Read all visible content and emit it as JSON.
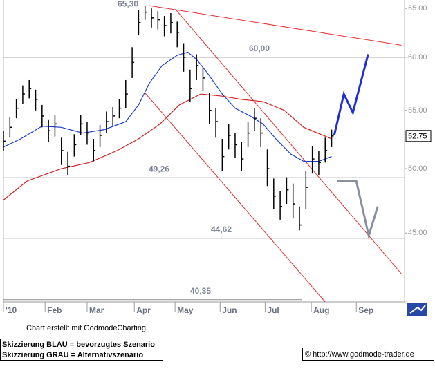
{
  "chart_data": {
    "type": "ohlc",
    "log_scale": true,
    "color": "#000000",
    "xlim": [
      0,
      187
    ],
    "xticks": [
      {
        "value": 0,
        "label": "'10"
      },
      {
        "value": 19.4,
        "label": "Feb"
      },
      {
        "value": 39,
        "label": "Mar"
      },
      {
        "value": 61,
        "label": "Apr"
      },
      {
        "value": 80,
        "label": "May"
      },
      {
        "value": 101,
        "label": "Jun"
      },
      {
        "value": 122,
        "label": "Jul"
      },
      {
        "value": 143.5,
        "label": "Aug"
      },
      {
        "value": 164.5,
        "label": "Sep"
      }
    ],
    "ylim": [
      40.2,
      65.9
    ],
    "yticks": [
      {
        "value": 45,
        "label": "45.00"
      },
      {
        "value": 50,
        "label": "50.00"
      },
      {
        "value": 55,
        "label": "55.00"
      },
      {
        "value": 60,
        "label": "60.00"
      },
      {
        "value": 65,
        "label": "65.00"
      }
    ],
    "x": [
      0,
      3,
      6,
      9,
      12,
      15,
      18,
      21,
      24,
      27,
      30,
      33,
      36,
      39,
      42,
      45,
      48,
      51,
      54,
      57,
      60,
      63,
      66,
      69,
      72,
      75,
      78,
      81,
      84,
      87,
      90,
      93,
      96,
      99,
      102,
      105,
      108,
      111,
      114,
      117,
      120,
      123,
      126,
      129,
      132,
      135,
      138,
      141,
      144,
      147,
      150,
      153
    ],
    "high": [
      53.2,
      54.4,
      56,
      57.3,
      57.8,
      56.9,
      55.5,
      54.2,
      54.6,
      52.6,
      51.4,
      52.9,
      54.6,
      54,
      52.5,
      53.7,
      54.9,
      55.3,
      56,
      57.8,
      61,
      64.8,
      65.3,
      65,
      64.7,
      64.2,
      64.5,
      63.6,
      61.4,
      58.8,
      60.3,
      59,
      56.6,
      55.2,
      52.5,
      53.8,
      53,
      52.2,
      54,
      55.2,
      54.3,
      51.6,
      49.2,
      48.2,
      49.3,
      48.8,
      47,
      49.8,
      51.9,
      51.5,
      52.6,
      53.3
    ],
    "low": [
      51.5,
      52.6,
      54.3,
      55.6,
      56.1,
      55,
      53.5,
      52.2,
      52.7,
      50.3,
      49.5,
      51,
      52.8,
      52,
      50.6,
      51.8,
      53,
      53.6,
      54.3,
      55.2,
      58,
      62.2,
      63.8,
      63,
      62.8,
      62.1,
      62.4,
      61,
      58.6,
      55.8,
      57.8,
      56.8,
      53.8,
      52.6,
      49.8,
      51.6,
      50.9,
      49.8,
      51.8,
      53.2,
      51.8,
      48.6,
      46.8,
      46,
      47.2,
      46.1,
      45.2,
      46.8,
      49.6,
      49.5,
      50.5,
      51.8
    ],
    "close": [
      52.3,
      53.5,
      55.2,
      56.5,
      57,
      56,
      54.5,
      53.2,
      53.8,
      51.5,
      50.2,
      52,
      53.8,
      53,
      51.5,
      52.8,
      54,
      54.5,
      55.2,
      56.5,
      59.5,
      63.5,
      64.6,
      64,
      63.8,
      63.2,
      63.5,
      62.5,
      60,
      57,
      59.2,
      58,
      55,
      54,
      51,
      52.8,
      52,
      50.8,
      53,
      54.3,
      53,
      50,
      47.8,
      47,
      48.3,
      47.2,
      45.6,
      48.5,
      50.8,
      50.5,
      51.5,
      52.75
    ],
    "last_price": 52.75,
    "moving_averages": [
      {
        "color": "#1a3ccf",
        "x": [
          0,
          8,
          18,
          27,
          37,
          47,
          57,
          63,
          68,
          74,
          81,
          86,
          90,
          95,
          102,
          108,
          115,
          121,
          127,
          134,
          140,
          147,
          153
        ],
        "values": [
          51.8,
          52.5,
          53.6,
          53.5,
          53,
          53.3,
          54,
          55.5,
          57.5,
          59.2,
          60.2,
          60.5,
          59.8,
          58.5,
          56.5,
          55.2,
          54.5,
          53.8,
          52.5,
          51.2,
          50.6,
          50.6,
          51
        ]
      },
      {
        "color": "#d42020",
        "x": [
          0,
          11,
          27,
          40,
          53,
          63,
          73,
          82,
          92,
          102,
          111,
          121,
          131,
          140,
          153
        ],
        "values": [
          47.5,
          49,
          50,
          50.5,
          51.5,
          52.5,
          53.8,
          55.5,
          56.5,
          56.3,
          56,
          55.8,
          55,
          53.5,
          52.5
        ]
      }
    ],
    "trend_lines": [
      {
        "color": "#e03030",
        "x": [
          68,
          185.5
        ],
        "values": [
          65.3,
          61.2
        ]
      },
      {
        "color": "#e03030",
        "x": [
          80.6,
          185.5
        ],
        "values": [
          64.8,
          42.1
        ]
      },
      {
        "color": "#e03030",
        "x": [
          66,
          150
        ],
        "values": [
          56.6,
          40.2
        ]
      }
    ],
    "levels": [
      {
        "value": 60,
        "label": "60,00",
        "x": [
          0,
          187
        ]
      },
      {
        "value": 49.26,
        "label": "49,26",
        "x": [
          0,
          187
        ]
      },
      {
        "value": 44.62,
        "label": "44,62",
        "x": [
          0,
          187
        ]
      },
      {
        "value": 40.35,
        "label": "40,35",
        "x": [
          0,
          139
        ]
      }
    ],
    "peak_label": {
      "value": 65.3,
      "label": "65,30"
    },
    "scenarios": [
      {
        "color": "#1f2fd6",
        "x": [
          154.2,
          158.7,
          162.9,
          170
        ],
        "values": [
          52.8,
          56.5,
          54.8,
          60.3
        ]
      },
      {
        "color": "#8a8f9e",
        "x": [
          155.5,
          164.5,
          170.3,
          174.5
        ],
        "values": [
          49,
          49,
          44.8,
          47
        ]
      }
    ],
    "credit": "Chart erstellt mit GodmodeCharting",
    "notes": [
      "Skizzierung BLAU = bevorzugtes Szenario",
      "Skizzierung GRAU = Alternativszenario"
    ],
    "source": "© http://www.godmode-trader.de"
  }
}
